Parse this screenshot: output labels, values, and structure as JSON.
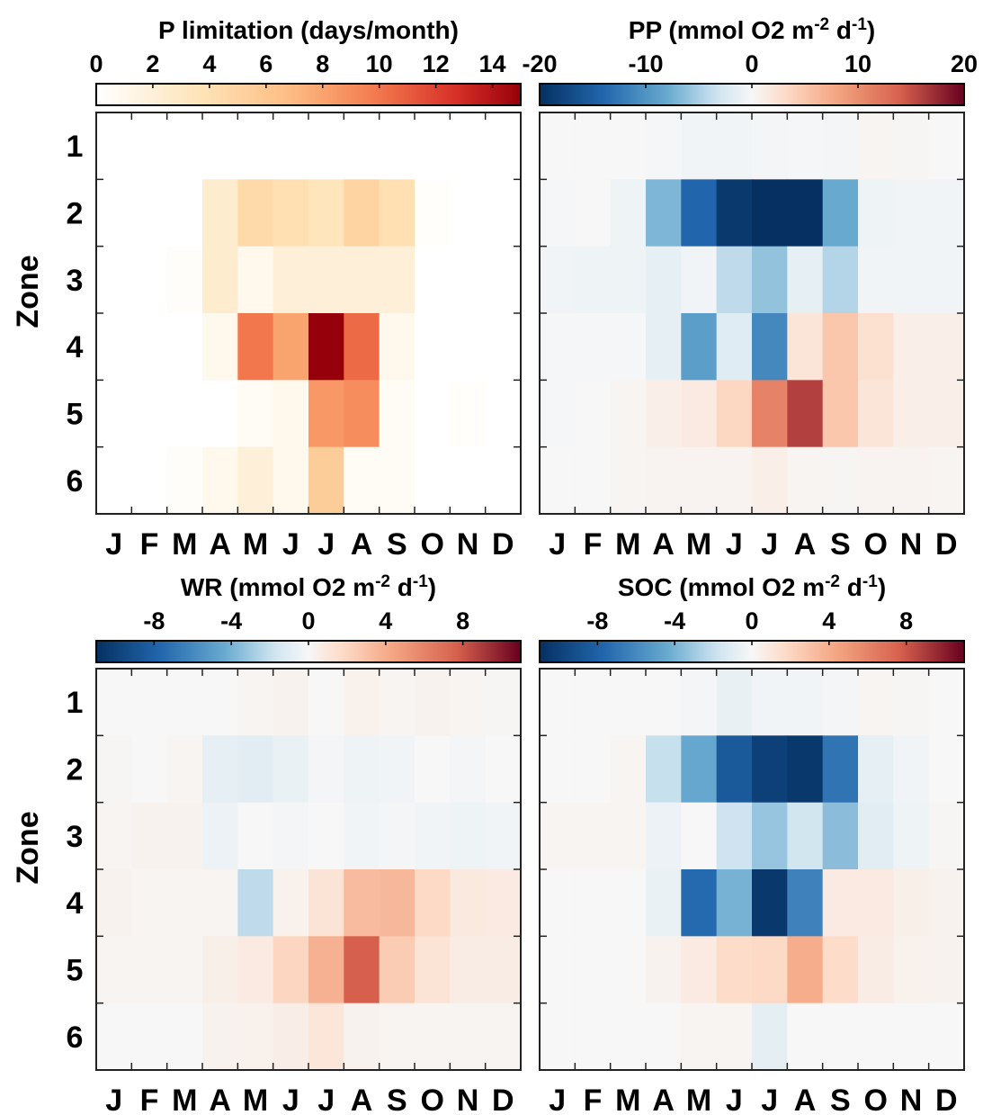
{
  "months": [
    "J",
    "F",
    "M",
    "A",
    "M",
    "J",
    "J",
    "A",
    "S",
    "O",
    "N",
    "D"
  ],
  "zones": [
    "1",
    "2",
    "3",
    "4",
    "5",
    "6"
  ],
  "zone_label": "Zone",
  "chart_data": [
    {
      "type": "heatmap",
      "title_main": "P limitation (days/month)",
      "title_parts": [],
      "colormap": "sequential-white-orange-red",
      "vmin": 0,
      "vmax": 15,
      "ticks": [
        0,
        2,
        4,
        6,
        8,
        10,
        12,
        14
      ],
      "tick_labels": [
        "0",
        "2",
        "4",
        "6",
        "8",
        "10",
        "12",
        "14"
      ],
      "x": [
        "J",
        "F",
        "M",
        "A",
        "M",
        "J",
        "J",
        "A",
        "S",
        "O",
        "N",
        "D"
      ],
      "y": [
        "1",
        "2",
        "3",
        "4",
        "5",
        "6"
      ],
      "values": [
        [
          0,
          0,
          0,
          0,
          0,
          0,
          0,
          0,
          0,
          0,
          0,
          0
        ],
        [
          0,
          0,
          0,
          2.5,
          4.5,
          4,
          3.5,
          5,
          4,
          0.2,
          0,
          0
        ],
        [
          0,
          0,
          0.3,
          2.5,
          1,
          2,
          2,
          2,
          2,
          0,
          0,
          0
        ],
        [
          0,
          0,
          0,
          1,
          10,
          8,
          15,
          10.5,
          1,
          0,
          0,
          0
        ],
        [
          0,
          0,
          0,
          0,
          0.5,
          1,
          8.5,
          9,
          0.5,
          0,
          0.2,
          0
        ],
        [
          0,
          0,
          0.3,
          1,
          2,
          1,
          5.5,
          0.5,
          0.5,
          0,
          0,
          0
        ]
      ]
    },
    {
      "type": "heatmap",
      "title_main": "PP (mmol O2 m",
      "title_parts": [
        "-2",
        " d",
        "-1",
        ")"
      ],
      "colormap": "diverging-blue-white-red",
      "vmin": -20,
      "vmax": 20,
      "ticks": [
        -20,
        -10,
        0,
        10,
        20
      ],
      "tick_labels": [
        "-20",
        "-10",
        "0",
        "10",
        "20"
      ],
      "x": [
        "J",
        "F",
        "M",
        "A",
        "M",
        "J",
        "J",
        "A",
        "S",
        "O",
        "N",
        "D"
      ],
      "y": [
        "1",
        "2",
        "3",
        "4",
        "5",
        "6"
      ],
      "values": [
        [
          0,
          0,
          0,
          -0.2,
          -0.5,
          -0.5,
          -0.3,
          -0.2,
          -0.3,
          0.4,
          0.2,
          0
        ],
        [
          -0.2,
          0,
          -0.8,
          -7,
          -14,
          -19,
          -20,
          -20,
          -8,
          -0.8,
          -0.5,
          -0.5
        ],
        [
          -0.5,
          -0.8,
          -0.8,
          -1.5,
          -0.5,
          -4,
          -6,
          -1.5,
          -4.5,
          -0.5,
          -0.5,
          -0.5
        ],
        [
          -0.2,
          -0.2,
          -0.2,
          -1.5,
          -9,
          -2,
          -11,
          2,
          5,
          2.5,
          1,
          1
        ],
        [
          -0.2,
          0,
          0.3,
          1,
          1.5,
          3.5,
          11,
          16,
          5,
          2,
          1,
          1
        ],
        [
          0,
          0,
          0.3,
          0.5,
          0.5,
          0.5,
          1,
          0.3,
          0.2,
          0.5,
          0.5,
          0.3
        ]
      ]
    },
    {
      "type": "heatmap",
      "title_main": "WR (mmol O2 m",
      "title_parts": [
        "-2",
        " d",
        "-1",
        ")"
      ],
      "colormap": "diverging-blue-white-red",
      "vmin": -11,
      "vmax": 11,
      "ticks": [
        -8,
        -4,
        0,
        4,
        8
      ],
      "tick_labels": [
        "-8",
        "-4",
        "0",
        "4",
        "8"
      ],
      "x": [
        "J",
        "F",
        "M",
        "A",
        "M",
        "J",
        "J",
        "A",
        "S",
        "O",
        "N",
        "D"
      ],
      "y": [
        "1",
        "2",
        "3",
        "4",
        "5",
        "6"
      ],
      "values": [
        [
          0,
          0,
          0,
          0,
          0.2,
          0.3,
          0,
          0.4,
          0.2,
          0.3,
          0.2,
          0.1
        ],
        [
          0.1,
          0,
          0.2,
          -0.8,
          -1,
          -0.6,
          -0.2,
          -0.4,
          -0.3,
          0,
          -0.2,
          0
        ],
        [
          0.2,
          0.3,
          0.3,
          -0.5,
          0,
          -0.2,
          0,
          -0.3,
          -0.2,
          -0.3,
          -0.4,
          -0.3
        ],
        [
          0.3,
          0.2,
          0.2,
          0.2,
          -2.2,
          0.4,
          1.2,
          3.3,
          3.5,
          1.8,
          0.9,
          0.8
        ],
        [
          0.2,
          0.2,
          0.2,
          0.5,
          0.8,
          2,
          3.8,
          7.7,
          2.5,
          1.2,
          0.7,
          0.7
        ],
        [
          0,
          0,
          0,
          0.3,
          0.4,
          0.6,
          1.1,
          0.3,
          0.2,
          0.2,
          0.2,
          0.2
        ]
      ]
    },
    {
      "type": "heatmap",
      "title_main": "SOC (mmol O2 m",
      "title_parts": [
        "-2",
        " d",
        "-1",
        ")"
      ],
      "colormap": "diverging-blue-white-red",
      "vmin": -11,
      "vmax": 11,
      "ticks": [
        -8,
        -4,
        0,
        4,
        8
      ],
      "tick_labels": [
        "-8",
        "-4",
        "0",
        "4",
        "8"
      ],
      "x": [
        "J",
        "F",
        "M",
        "A",
        "M",
        "J",
        "J",
        "A",
        "S",
        "O",
        "N",
        "D"
      ],
      "y": [
        "1",
        "2",
        "3",
        "4",
        "5",
        "6"
      ],
      "values": [
        [
          0,
          0,
          0,
          0,
          -0.2,
          -0.7,
          -0.3,
          -0.3,
          -0.2,
          0.2,
          0.1,
          0
        ],
        [
          0,
          0,
          0.2,
          -2,
          -4.5,
          -8.5,
          -10,
          -10.5,
          -7,
          -0.8,
          -0.3,
          0
        ],
        [
          0.2,
          0.2,
          0.2,
          -0.5,
          0,
          -1.8,
          -3.2,
          -1.7,
          -3.5,
          -1,
          -0.4,
          0.1
        ],
        [
          0,
          0,
          0,
          -0.6,
          -7.5,
          -4,
          -10.5,
          -6.3,
          0.8,
          0.8,
          0.5,
          0.3
        ],
        [
          0,
          0,
          0,
          0.3,
          0.8,
          1.7,
          1.8,
          4,
          1.7,
          0.7,
          0.4,
          0.3
        ],
        [
          0,
          0,
          0,
          0,
          0.2,
          0.2,
          -0.9,
          0,
          0,
          0,
          0,
          0
        ]
      ]
    }
  ]
}
